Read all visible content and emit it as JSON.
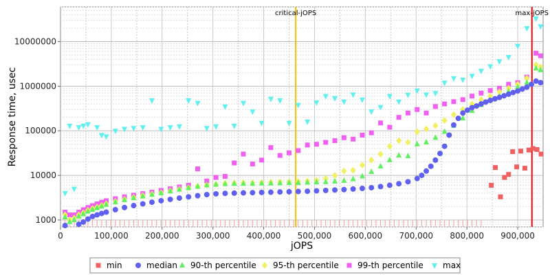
{
  "chart_data": {
    "type": "scatter",
    "xlabel": "jOPS",
    "ylabel": "Response time, usec",
    "xlim": [
      0,
      950000
    ],
    "ylim": [
      700,
      60000000
    ],
    "yscale": "log",
    "grid": true,
    "legend_position": "bottom",
    "x_ticks": [
      0,
      100000,
      200000,
      300000,
      400000,
      500000,
      600000,
      700000,
      800000,
      900000
    ],
    "x_tick_labels": [
      "0",
      "100,000",
      "200,000",
      "300,000",
      "400,000",
      "500,000",
      "600,000",
      "700,000",
      "800,000",
      "900,000"
    ],
    "y_ticks": [
      1000,
      10000,
      100000,
      1000000,
      10000000
    ],
    "y_tick_labels": [
      "1000",
      "10000",
      "100000",
      "1000000",
      "10000000"
    ],
    "vlines": [
      {
        "label": "critical-jOPS",
        "x": 463000,
        "color": "#f0c000"
      },
      {
        "label": "max-jOPS",
        "x": 928000,
        "color": "#ff0000"
      }
    ],
    "series": [
      {
        "name": "min",
        "marker": "square",
        "color": "#f06060",
        "x": [
          848000,
          856000,
          866000,
          874000,
          882000,
          890000,
          898000,
          906000,
          914000,
          922000,
          930000,
          938000,
          946000
        ],
        "y": [
          6000,
          15000,
          3300,
          9000,
          10500,
          34000,
          15500,
          35000,
          14500,
          37000,
          40000,
          38000,
          30000
        ]
      },
      {
        "name": "median",
        "marker": "circle",
        "color": "#6060f0",
        "x": [
          9000,
          18000,
          27000,
          36000,
          45000,
          54000,
          63000,
          72000,
          81000,
          90000,
          108000,
          126000,
          144000,
          162000,
          180000,
          198000,
          216000,
          234000,
          252000,
          270000,
          288000,
          306000,
          324000,
          342000,
          360000,
          378000,
          396000,
          414000,
          432000,
          450000,
          468000,
          486000,
          504000,
          522000,
          540000,
          558000,
          576000,
          594000,
          612000,
          630000,
          648000,
          666000,
          684000,
          702000,
          711000,
          720000,
          729000,
          738000,
          747000,
          756000,
          765000,
          774000,
          783000,
          792000,
          801000,
          810000,
          819000,
          828000,
          837000,
          846000,
          855000,
          864000,
          873000,
          882000,
          891000,
          900000,
          909000,
          918000,
          927000,
          936000,
          945000
        ],
        "y": [
          750,
          650,
          620,
          800,
          900,
          1050,
          1200,
          1300,
          1400,
          1500,
          1700,
          1900,
          2100,
          2300,
          2500,
          2700,
          2900,
          3100,
          3300,
          3500,
          3700,
          3850,
          3950,
          4000,
          4050,
          4100,
          4150,
          4200,
          4250,
          4300,
          4350,
          4400,
          4500,
          4600,
          4700,
          4800,
          4950,
          5100,
          5300,
          5600,
          6000,
          6500,
          7200,
          8500,
          10000,
          12500,
          16000,
          22000,
          31000,
          45000,
          80000,
          135000,
          190000,
          250000,
          290000,
          330000,
          360000,
          400000,
          440000,
          480000,
          520000,
          560000,
          610000,
          660000,
          720000,
          780000,
          860000,
          950000,
          1100000,
          1300000,
          1200000
        ]
      },
      {
        "name": "90-th percentile",
        "marker": "triangle-up",
        "color": "#60f060",
        "x": [
          9000,
          18000,
          27000,
          36000,
          45000,
          54000,
          63000,
          72000,
          81000,
          90000,
          108000,
          126000,
          144000,
          162000,
          180000,
          198000,
          216000,
          234000,
          252000,
          270000,
          288000,
          306000,
          324000,
          342000,
          360000,
          378000,
          396000,
          414000,
          432000,
          450000,
          468000,
          486000,
          504000,
          522000,
          540000,
          558000,
          576000,
          594000,
          612000,
          630000,
          648000,
          666000,
          684000,
          702000,
          720000,
          738000,
          756000,
          774000,
          792000,
          810000,
          828000,
          846000,
          864000,
          882000,
          900000,
          918000,
          936000,
          945000
        ],
        "y": [
          1150,
          900,
          1000,
          1200,
          1350,
          1550,
          1700,
          1850,
          2000,
          2200,
          2500,
          2800,
          3100,
          3400,
          3700,
          4000,
          4400,
          4800,
          5200,
          5600,
          6000,
          6200,
          6400,
          6500,
          6500,
          6500,
          6600,
          6600,
          6700,
          6800,
          6800,
          6900,
          7000,
          7100,
          7300,
          7600,
          8200,
          9500,
          12000,
          16000,
          22000,
          28000,
          27000,
          50000,
          55000,
          70000,
          95000,
          130000,
          190000,
          280000,
          380000,
          480000,
          600000,
          760000,
          950000,
          1200000,
          2500000,
          2300000
        ]
      },
      {
        "name": "95-th percentile",
        "marker": "diamond",
        "color": "#f0f060",
        "x": [
          9000,
          18000,
          27000,
          36000,
          45000,
          54000,
          63000,
          72000,
          81000,
          90000,
          108000,
          126000,
          144000,
          162000,
          180000,
          198000,
          216000,
          234000,
          252000,
          270000,
          288000,
          306000,
          324000,
          342000,
          360000,
          378000,
          396000,
          414000,
          432000,
          450000,
          468000,
          486000,
          504000,
          522000,
          540000,
          558000,
          576000,
          594000,
          612000,
          630000,
          648000,
          666000,
          684000,
          702000,
          720000,
          738000,
          756000,
          774000,
          792000,
          810000,
          828000,
          846000,
          864000,
          882000,
          900000,
          918000,
          936000,
          945000
        ],
        "y": [
          1300,
          1000,
          1100,
          1300,
          1450,
          1650,
          1800,
          1950,
          2100,
          2300,
          2600,
          2900,
          3200,
          3500,
          3800,
          4100,
          4500,
          4900,
          5300,
          5700,
          6100,
          6300,
          6600,
          6700,
          6800,
          6800,
          6900,
          7000,
          7100,
          7200,
          7300,
          7500,
          7800,
          8500,
          10000,
          12500,
          13000,
          17000,
          22000,
          30000,
          45000,
          60000,
          55000,
          95000,
          110000,
          130000,
          170000,
          230000,
          300000,
          400000,
          500000,
          600000,
          750000,
          900000,
          1100000,
          1500000,
          3000000,
          2700000
        ]
      },
      {
        "name": "99-th percentile",
        "marker": "square",
        "color": "#f060f0",
        "x": [
          9000,
          18000,
          27000,
          36000,
          45000,
          54000,
          63000,
          72000,
          81000,
          90000,
          108000,
          126000,
          144000,
          162000,
          180000,
          198000,
          216000,
          234000,
          252000,
          270000,
          288000,
          306000,
          324000,
          342000,
          360000,
          378000,
          396000,
          414000,
          432000,
          450000,
          468000,
          486000,
          504000,
          522000,
          540000,
          558000,
          576000,
          594000,
          612000,
          630000,
          648000,
          666000,
          684000,
          702000,
          720000,
          738000,
          756000,
          774000,
          792000,
          810000,
          828000,
          846000,
          864000,
          882000,
          900000,
          918000,
          936000,
          945000
        ],
        "y": [
          1500,
          1300,
          1300,
          1500,
          1700,
          1900,
          2100,
          2300,
          2500,
          2700,
          3000,
          3300,
          3600,
          3900,
          4200,
          4600,
          5000,
          5500,
          6000,
          14000,
          7500,
          9000,
          9500,
          19000,
          30000,
          18000,
          22000,
          42000,
          28000,
          32000,
          36000,
          48000,
          50000,
          55000,
          60000,
          70000,
          65000,
          80000,
          90000,
          150000,
          120000,
          200000,
          250000,
          300000,
          250000,
          350000,
          400000,
          450000,
          500000,
          600000,
          700000,
          800000,
          900000,
          1100000,
          1200000,
          1600000,
          5500000,
          4800000
        ]
      },
      {
        "name": "max",
        "marker": "triangle-down",
        "color": "#60f0f0",
        "x": [
          9000,
          18000,
          27000,
          36000,
          45000,
          54000,
          72000,
          81000,
          90000,
          108000,
          126000,
          144000,
          162000,
          180000,
          198000,
          216000,
          234000,
          252000,
          270000,
          288000,
          306000,
          324000,
          342000,
          360000,
          378000,
          396000,
          414000,
          432000,
          450000,
          468000,
          486000,
          504000,
          522000,
          540000,
          558000,
          576000,
          594000,
          612000,
          630000,
          648000,
          666000,
          684000,
          702000,
          720000,
          738000,
          756000,
          774000,
          792000,
          810000,
          828000,
          846000,
          864000,
          882000,
          900000,
          918000,
          936000,
          945000
        ],
        "y": [
          4000,
          130000,
          5000,
          120000,
          130000,
          140000,
          120000,
          80000,
          75000,
          100000,
          110000,
          115000,
          120000,
          480000,
          110000,
          120000,
          125000,
          480000,
          420000,
          115000,
          125000,
          350000,
          130000,
          420000,
          270000,
          150000,
          520000,
          480000,
          150000,
          380000,
          160000,
          430000,
          600000,
          540000,
          450000,
          650000,
          500000,
          270000,
          340000,
          600000,
          450000,
          640000,
          800000,
          650000,
          700000,
          1200000,
          1500000,
          1400000,
          1700000,
          2200000,
          2800000,
          3600000,
          4500000,
          8000000,
          20000000,
          33000000,
          22000000
        ]
      }
    ]
  }
}
